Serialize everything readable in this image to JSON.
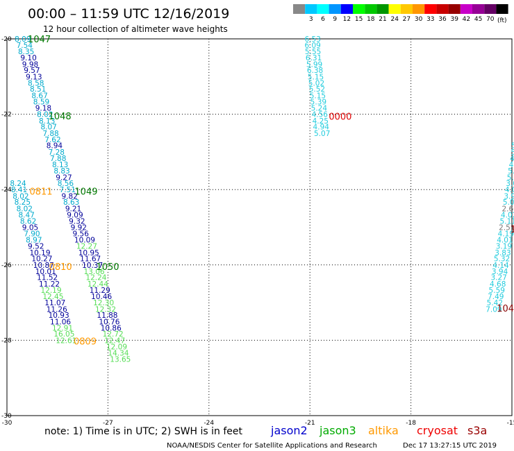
{
  "header": {
    "title": "00:00 – 11:59 UTC 12/16/2019",
    "subtitle": "12 hour collection of altimeter wave heights"
  },
  "legend": {
    "unit": "(ft)",
    "swatches": [
      {
        "color": "#888888",
        "label": ""
      },
      {
        "color": "#00c8ff",
        "label": "3"
      },
      {
        "color": "#00ffff",
        "label": "6"
      },
      {
        "color": "#0096ff",
        "label": "9"
      },
      {
        "color": "#0000ff",
        "label": "12"
      },
      {
        "color": "#00ff00",
        "label": "15"
      },
      {
        "color": "#00c800",
        "label": "18"
      },
      {
        "color": "#009600",
        "label": "21"
      },
      {
        "color": "#ffff00",
        "label": "24"
      },
      {
        "color": "#ffc800",
        "label": "27"
      },
      {
        "color": "#ff9600",
        "label": "30"
      },
      {
        "color": "#ff0000",
        "label": "33"
      },
      {
        "color": "#c80000",
        "label": "36"
      },
      {
        "color": "#960000",
        "label": "39"
      },
      {
        "color": "#c800c8",
        "label": "42"
      },
      {
        "color": "#960096",
        "label": "45"
      },
      {
        "color": "#640064",
        "label": "70"
      },
      {
        "color": "#000000",
        "label": ""
      }
    ]
  },
  "footer": {
    "note": "note: 1) Time is in UTC; 2) SWH is in feet",
    "credit": "NOAA/NESDIS Center for Satellite Applications and Research",
    "timestamp": "Dec 17 13:27:15 UTC 2019",
    "satellites": [
      {
        "name": "jason2",
        "color": "#0000cc"
      },
      {
        "name": "jason3",
        "color": "#00aa00"
      },
      {
        "name": "altika",
        "color": "#ff9900"
      },
      {
        "name": "cryosat",
        "color": "#ee0000"
      },
      {
        "name": "s3a",
        "color": "#990000"
      }
    ]
  },
  "chart_data": {
    "type": "scatter",
    "title": "",
    "xlim": [
      -30,
      -15
    ],
    "ylim": [
      -30,
      -20
    ],
    "x_ticks": [
      "-30",
      "-27",
      "-24",
      "-21",
      "-18",
      "-15"
    ],
    "y_ticks": [
      "-30",
      "-28",
      "-26",
      "-24",
      "-22",
      "-20"
    ],
    "grid": true,
    "series": [
      {
        "color": "#00aacc",
        "points": [
          {
            "x": -29.77,
            "y": -20.0,
            "label": "8.09"
          },
          {
            "x": -29.72,
            "y": -20.17,
            "label": "7.54"
          },
          {
            "x": -29.67,
            "y": -20.33,
            "label": "8.35"
          }
        ]
      },
      {
        "color": "#000099",
        "points": [
          {
            "x": -29.6,
            "y": -20.5,
            "label": "9.10"
          },
          {
            "x": -29.55,
            "y": -20.67,
            "label": "9.98"
          },
          {
            "x": -29.5,
            "y": -20.83,
            "label": "9.57"
          },
          {
            "x": -29.44,
            "y": -21.0,
            "label": "9.13"
          }
        ]
      },
      {
        "color": "#00aacc",
        "points": [
          {
            "x": -29.38,
            "y": -21.17,
            "label": "8.58"
          },
          {
            "x": -29.32,
            "y": -21.33,
            "label": "8.51"
          },
          {
            "x": -29.27,
            "y": -21.5,
            "label": "8.67"
          },
          {
            "x": -29.22,
            "y": -21.67,
            "label": "8.59"
          }
        ]
      },
      {
        "color": "#000099",
        "points": [
          {
            "x": -29.16,
            "y": -21.83,
            "label": "9.18"
          }
        ]
      },
      {
        "color": "#00aacc",
        "points": [
          {
            "x": -29.11,
            "y": -22.0,
            "label": "8.02"
          },
          {
            "x": -29.05,
            "y": -22.17,
            "label": "8.13"
          },
          {
            "x": -29.0,
            "y": -22.33,
            "label": "8.07"
          },
          {
            "x": -28.94,
            "y": -22.5,
            "label": "7.88"
          },
          {
            "x": -28.88,
            "y": -22.67,
            "label": "7.62"
          }
        ]
      },
      {
        "color": "#000099",
        "points": [
          {
            "x": -28.83,
            "y": -22.83,
            "label": "8.94"
          }
        ]
      },
      {
        "color": "#00aacc",
        "points": [
          {
            "x": -28.77,
            "y": -23.0,
            "label": "7.28"
          },
          {
            "x": -28.72,
            "y": -23.17,
            "label": "7.88"
          },
          {
            "x": -28.66,
            "y": -23.33,
            "label": "8.13"
          },
          {
            "x": -28.61,
            "y": -23.5,
            "label": "8.83"
          }
        ]
      },
      {
        "color": "#000099",
        "points": [
          {
            "x": -28.55,
            "y": -23.67,
            "label": "9.27"
          }
        ]
      },
      {
        "color": "#00aacc",
        "points": [
          {
            "x": -28.5,
            "y": -23.83,
            "label": "8.56"
          },
          {
            "x": -28.44,
            "y": -24.0,
            "label": "7.51"
          }
        ]
      },
      {
        "color": "#000099",
        "points": [
          {
            "x": -28.38,
            "y": -24.17,
            "label": "9.82"
          }
        ]
      },
      {
        "color": "#00aacc",
        "points": [
          {
            "x": -28.33,
            "y": -24.33,
            "label": "8.63"
          }
        ]
      },
      {
        "color": "#000099",
        "points": [
          {
            "x": -28.27,
            "y": -24.5,
            "label": "9.21"
          },
          {
            "x": -28.22,
            "y": -24.67,
            "label": "9.09"
          },
          {
            "x": -28.16,
            "y": -24.83,
            "label": "9.32"
          },
          {
            "x": -28.11,
            "y": -25.0,
            "label": "9.92"
          },
          {
            "x": -28.05,
            "y": -25.17,
            "label": "9.56"
          },
          {
            "x": -28.0,
            "y": -25.33,
            "label": "10.09"
          }
        ]
      },
      {
        "color": "#55dd55",
        "points": [
          {
            "x": -27.94,
            "y": -25.5,
            "label": "12.27"
          }
        ]
      },
      {
        "color": "#000099",
        "points": [
          {
            "x": -27.88,
            "y": -25.67,
            "label": "10.95"
          },
          {
            "x": -27.83,
            "y": -25.83,
            "label": "11.67"
          },
          {
            "x": -27.77,
            "y": -26.0,
            "label": "10.37"
          }
        ]
      },
      {
        "color": "#55dd55",
        "points": [
          {
            "x": -27.72,
            "y": -26.17,
            "label": "13.06"
          },
          {
            "x": -27.66,
            "y": -26.33,
            "label": "12.24"
          },
          {
            "x": -27.61,
            "y": -26.5,
            "label": "12.44"
          }
        ]
      },
      {
        "color": "#000099",
        "points": [
          {
            "x": -27.55,
            "y": -26.67,
            "label": "11.29"
          },
          {
            "x": -27.5,
            "y": -26.83,
            "label": "10.46"
          }
        ]
      },
      {
        "color": "#55dd55",
        "points": [
          {
            "x": -27.44,
            "y": -27.0,
            "label": "12.30"
          },
          {
            "x": -27.38,
            "y": -27.17,
            "label": "12.32"
          }
        ]
      },
      {
        "color": "#000099",
        "points": [
          {
            "x": -27.33,
            "y": -27.33,
            "label": "11.88"
          },
          {
            "x": -27.27,
            "y": -27.5,
            "label": "10.76"
          },
          {
            "x": -27.22,
            "y": -27.67,
            "label": "10.86"
          }
        ]
      },
      {
        "color": "#55dd55",
        "points": [
          {
            "x": -27.16,
            "y": -27.83,
            "label": "12.72"
          },
          {
            "x": -27.11,
            "y": -28.0,
            "label": "12.47"
          },
          {
            "x": -27.05,
            "y": -28.17,
            "label": "12.09"
          },
          {
            "x": -27.0,
            "y": -28.33,
            "label": "14.34"
          },
          {
            "x": -26.94,
            "y": -28.5,
            "label": "13.65"
          }
        ]
      },
      {
        "color": "#00aacc",
        "points": [
          {
            "x": -29.91,
            "y": -23.83,
            "label": "8.24"
          },
          {
            "x": -29.88,
            "y": -24.0,
            "label": "8.41"
          },
          {
            "x": -29.83,
            "y": -24.17,
            "label": "8.02"
          },
          {
            "x": -29.78,
            "y": -24.33,
            "label": "8.25"
          },
          {
            "x": -29.72,
            "y": -24.5,
            "label": "8.02"
          },
          {
            "x": -29.66,
            "y": -24.67,
            "label": "8.47"
          },
          {
            "x": -29.61,
            "y": -24.83,
            "label": "8.62"
          }
        ]
      },
      {
        "color": "#000099",
        "points": [
          {
            "x": -29.55,
            "y": -25.0,
            "label": "9.05"
          }
        ]
      },
      {
        "color": "#00aacc",
        "points": [
          {
            "x": -29.5,
            "y": -25.17,
            "label": "7.90"
          },
          {
            "x": -29.44,
            "y": -25.33,
            "label": "8.97"
          }
        ]
      },
      {
        "color": "#000099",
        "points": [
          {
            "x": -29.38,
            "y": -25.5,
            "label": "9.52"
          },
          {
            "x": -29.33,
            "y": -25.67,
            "label": "10.19"
          },
          {
            "x": -29.27,
            "y": -25.83,
            "label": "10.27"
          },
          {
            "x": -29.22,
            "y": -26.0,
            "label": "10.87"
          },
          {
            "x": -29.16,
            "y": -26.17,
            "label": "10.01"
          },
          {
            "x": -29.11,
            "y": -26.33,
            "label": "11.52"
          },
          {
            "x": -29.05,
            "y": -26.5,
            "label": "11.22"
          }
        ]
      },
      {
        "color": "#55dd55",
        "points": [
          {
            "x": -29.0,
            "y": -26.67,
            "label": "12.19"
          },
          {
            "x": -28.94,
            "y": -26.83,
            "label": "12.45"
          }
        ]
      },
      {
        "color": "#000099",
        "points": [
          {
            "x": -28.88,
            "y": -27.0,
            "label": "11.07"
          },
          {
            "x": -28.83,
            "y": -27.17,
            "label": "11.26"
          },
          {
            "x": -28.77,
            "y": -27.33,
            "label": "10.93"
          },
          {
            "x": -28.72,
            "y": -27.5,
            "label": "11.06"
          }
        ]
      },
      {
        "color": "#55dd55",
        "points": [
          {
            "x": -28.66,
            "y": -27.67,
            "label": "12.91"
          },
          {
            "x": -28.61,
            "y": -27.83,
            "label": "16.05"
          },
          {
            "x": -28.55,
            "y": -28.0,
            "label": "12.61"
          }
        ]
      },
      {
        "color": "#22ccdd",
        "points": [
          {
            "x": -21.16,
            "y": -20.0,
            "label": "6.53"
          },
          {
            "x": -21.16,
            "y": -20.17,
            "label": "6.09"
          },
          {
            "x": -21.15,
            "y": -20.33,
            "label": "5.55"
          },
          {
            "x": -21.13,
            "y": -20.5,
            "label": "6.31"
          },
          {
            "x": -21.11,
            "y": -20.67,
            "label": "5.99"
          },
          {
            "x": -21.09,
            "y": -20.83,
            "label": "6.38"
          },
          {
            "x": -21.07,
            "y": -21.0,
            "label": "5.15"
          },
          {
            "x": -21.05,
            "y": -21.17,
            "label": "5.02"
          },
          {
            "x": -21.03,
            "y": -21.33,
            "label": "5.52"
          },
          {
            "x": -21.01,
            "y": -21.5,
            "label": "5.15"
          },
          {
            "x": -20.99,
            "y": -21.67,
            "label": "5.39"
          },
          {
            "x": -20.97,
            "y": -21.83,
            "label": "5.24"
          },
          {
            "x": -20.95,
            "y": -22.0,
            "label": "4.56"
          },
          {
            "x": -20.93,
            "y": -22.17,
            "label": "4.25"
          },
          {
            "x": -20.91,
            "y": -22.33,
            "label": "4.94"
          },
          {
            "x": -20.88,
            "y": -22.5,
            "label": "5.07"
          }
        ]
      },
      {
        "color": "#22ccdd",
        "points": [
          {
            "x": -15.02,
            "y": -22.83,
            "label": "5"
          },
          {
            "x": -15.03,
            "y": -23.0,
            "label": "5"
          },
          {
            "x": -15.06,
            "y": -23.17,
            "label": "4."
          },
          {
            "x": -15.09,
            "y": -23.33,
            "label": "4.3"
          },
          {
            "x": -15.12,
            "y": -23.5,
            "label": "5.2"
          },
          {
            "x": -15.15,
            "y": -23.67,
            "label": "5.2"
          },
          {
            "x": -15.18,
            "y": -23.83,
            "label": "3.07"
          },
          {
            "x": -15.21,
            "y": -24.0,
            "label": "4.03"
          },
          {
            "x": -15.24,
            "y": -24.17,
            "label": "3.99"
          },
          {
            "x": -15.27,
            "y": -24.33,
            "label": "5.01"
          }
        ]
      },
      {
        "color": "#777777",
        "points": [
          {
            "x": -15.3,
            "y": -24.5,
            "label": "2.66"
          }
        ]
      },
      {
        "color": "#22ccdd",
        "points": [
          {
            "x": -15.33,
            "y": -24.67,
            "label": "4.02"
          },
          {
            "x": -15.36,
            "y": -24.83,
            "label": "5.11"
          }
        ]
      },
      {
        "color": "#777777",
        "points": [
          {
            "x": -15.39,
            "y": -25.0,
            "label": "2.51"
          }
        ]
      },
      {
        "color": "#22ccdd",
        "points": [
          {
            "x": -15.42,
            "y": -25.17,
            "label": "4.19"
          },
          {
            "x": -15.45,
            "y": -25.33,
            "label": "4.01"
          },
          {
            "x": -15.48,
            "y": -25.5,
            "label": "3.19"
          },
          {
            "x": -15.51,
            "y": -25.67,
            "label": "3.83"
          },
          {
            "x": -15.54,
            "y": -25.83,
            "label": "5.32"
          },
          {
            "x": -15.57,
            "y": -26.0,
            "label": "4.14"
          },
          {
            "x": -15.6,
            "y": -26.17,
            "label": "3.94"
          },
          {
            "x": -15.63,
            "y": -26.33,
            "label": "3.27"
          },
          {
            "x": -15.66,
            "y": -26.5,
            "label": "4.68"
          },
          {
            "x": -15.69,
            "y": -26.67,
            "label": "5.59"
          },
          {
            "x": -15.72,
            "y": -26.83,
            "label": "7.49"
          },
          {
            "x": -15.75,
            "y": -27.0,
            "label": "5.42"
          },
          {
            "x": -15.78,
            "y": -27.17,
            "label": "7.09"
          }
        ]
      }
    ],
    "time_labels": [
      {
        "x": -29.38,
        "y": -20.0,
        "label": "1047",
        "color": "#007700"
      },
      {
        "x": -28.77,
        "y": -22.04,
        "label": "1048",
        "color": "#007700"
      },
      {
        "x": -27.99,
        "y": -24.04,
        "label": "1049",
        "color": "#007700"
      },
      {
        "x": -27.35,
        "y": -26.04,
        "label": "1050",
        "color": "#007700"
      },
      {
        "x": -29.33,
        "y": -24.04,
        "label": "0811",
        "color": "#ff9900"
      },
      {
        "x": -28.75,
        "y": -26.04,
        "label": "0810",
        "color": "#ff9900"
      },
      {
        "x": -28.02,
        "y": -28.02,
        "label": "0809",
        "color": "#ff9900"
      },
      {
        "x": -20.44,
        "y": -22.05,
        "label": "0000",
        "color": "#dd0000"
      },
      {
        "x": -15.45,
        "y": -27.15,
        "label": "1047",
        "color": "#880000"
      },
      {
        "x": -15.05,
        "y": -25.05,
        "label": "1",
        "color": "#880000"
      }
    ]
  }
}
